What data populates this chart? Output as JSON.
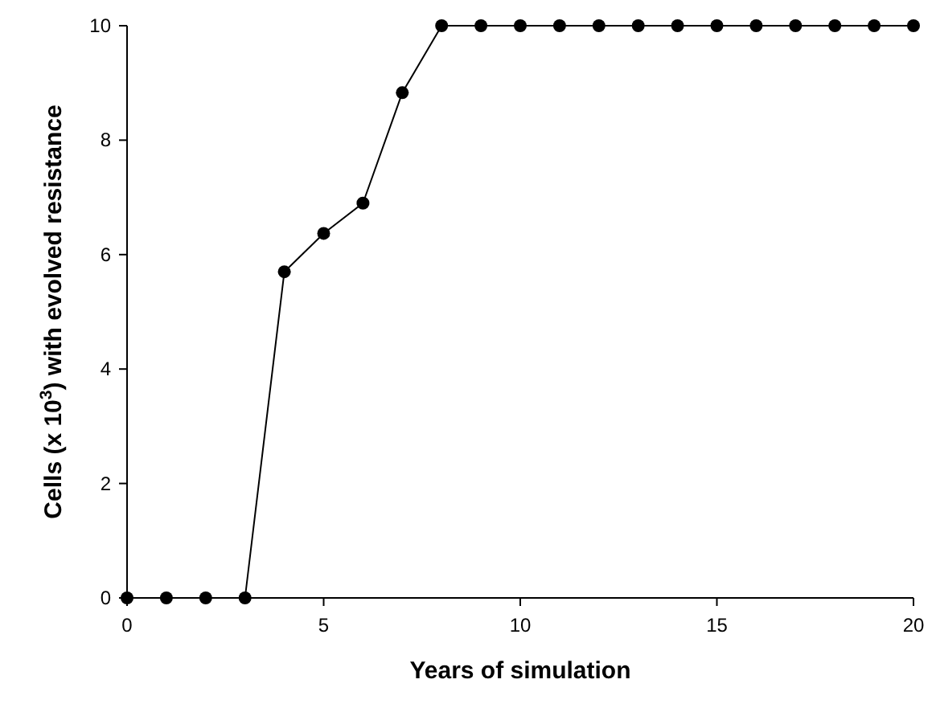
{
  "chart_data": {
    "type": "line",
    "xlabel": "Years of simulation",
    "ylabel": "Cells (x 10$^{3}$) with evolved resistance",
    "x": [
      0,
      1,
      2,
      3,
      4,
      5,
      6,
      7,
      8,
      9,
      10,
      11,
      12,
      13,
      14,
      15,
      16,
      17,
      18,
      19,
      20
    ],
    "series": [
      {
        "color": "#000000",
        "values": [
          0,
          0,
          0,
          0,
          5.7,
          6.37,
          6.9,
          8.83,
          10,
          10,
          10,
          10,
          10,
          10,
          10,
          10,
          10,
          10,
          10,
          10,
          10
        ]
      }
    ],
    "xlim": [
      0,
      20
    ],
    "xticks": [
      0,
      5,
      10,
      15,
      20
    ],
    "ylim": [
      0,
      10
    ],
    "yticks": [
      0,
      2,
      4,
      6,
      8,
      10
    ],
    "marker": "circle",
    "line_style": "solid"
  }
}
